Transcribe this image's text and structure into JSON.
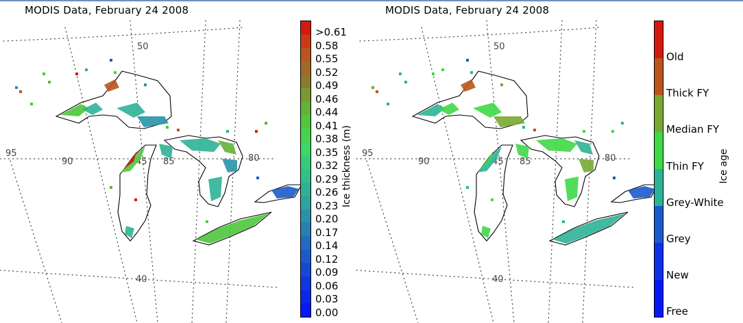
{
  "left_panel": {
    "title": "MODIS Data, February 24 2008",
    "colorbar": {
      "axis_label": "Ice thickness (m)",
      "ticks": [
        ">0.61",
        "0.58",
        "0.55",
        "0.52",
        "0.49",
        "0.46",
        "0.44",
        "0.41",
        "0.38",
        "0.35",
        "0.32",
        "0.29",
        "0.26",
        "0.23",
        "0.20",
        "0.17",
        "0.14",
        "0.12",
        "0.09",
        "0.06",
        "0.03",
        "0.00"
      ],
      "colors": [
        "#d41a10",
        "#cc3a14",
        "#b8561e",
        "#a06a26",
        "#8a7c2c",
        "#789a30",
        "#62b236",
        "#4cc83a",
        "#46d44a",
        "#3ad864",
        "#34cc78",
        "#30c08a",
        "#2eb296",
        "#2ea49e",
        "#2a92a8",
        "#2680b4",
        "#226cc0",
        "#1c5acb",
        "#1648d6",
        "#1036e0",
        "#0a28ec",
        "#0418f8"
      ]
    },
    "grid_labels": {
      "lat_50": "50",
      "lat_45": "45",
      "lat_40": "40",
      "lon_95": "95",
      "lon_90": "90",
      "lon_85": "85",
      "lon_80": "80"
    }
  },
  "right_panel": {
    "title": "MODIS Data, February 24 2008",
    "colorbar": {
      "axis_label": "Ice age",
      "ticks": [
        "Old",
        "Thick FY",
        "Median FY",
        "Thin FY",
        "Grey-White",
        "Grey",
        "New",
        "Free"
      ],
      "colors": [
        "#d41a10",
        "#b8561e",
        "#78a832",
        "#3ed848",
        "#2eb296",
        "#1c5acb",
        "#0c30e8",
        "#0418f8"
      ]
    },
    "grid_labels": {
      "lat_50": "50",
      "lat_45": "45",
      "lat_40": "40",
      "lon_95": "95",
      "lon_90": "90",
      "lon_85": "85",
      "lon_80": "80"
    }
  }
}
